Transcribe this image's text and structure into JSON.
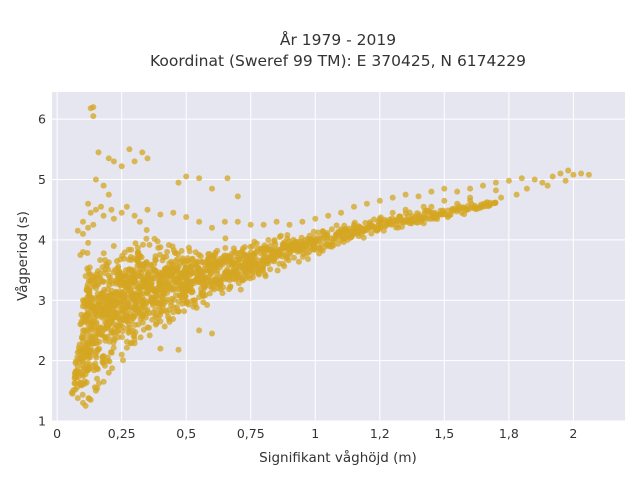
{
  "colors": {
    "plot_background": "#e6e6f0",
    "grid": "#ffffff",
    "marker": "#d4a521"
  },
  "chart_data": {
    "type": "scatter",
    "title": "År 1979 - 2019",
    "subtitle": "Koordinat (Sweref 99 TM): E 370425, N 6174229",
    "xlabel": "Signifikant våghöjd (m)",
    "ylabel": "Vågperiod (s)",
    "xlim": [
      -0.02,
      2.2
    ],
    "ylim": [
      1,
      6.45
    ],
    "x_ticks": [
      0,
      0.25,
      0.5,
      0.75,
      1,
      1.25,
      1.5,
      1.75,
      2
    ],
    "x_tick_labels": [
      "0",
      "0,25",
      "0,5",
      "0,75",
      "1",
      "1,2",
      "1,5",
      "1,8",
      "2"
    ],
    "y_ticks": [
      1,
      2,
      3,
      4,
      5,
      6
    ],
    "y_tick_labels": [
      "1",
      "2",
      "3",
      "4",
      "5",
      "6"
    ],
    "grid": true,
    "series": [
      {
        "marker_color": "#d4a521",
        "points": [
          [
            0.06,
            1.45
          ],
          [
            0.07,
            1.52
          ],
          [
            0.08,
            1.38
          ],
          [
            0.09,
            1.6
          ],
          [
            0.1,
            1.3
          ],
          [
            0.11,
            1.25
          ],
          [
            0.1,
            1.75
          ],
          [
            0.12,
            1.9
          ],
          [
            0.1,
            2.3
          ],
          [
            0.09,
            2.6
          ],
          [
            0.1,
            3.0
          ],
          [
            0.11,
            3.4
          ],
          [
            0.1,
            3.8
          ],
          [
            0.1,
            4.1
          ],
          [
            0.12,
            4.2
          ],
          [
            0.13,
            4.45
          ],
          [
            0.13,
            6.18
          ],
          [
            0.14,
            6.2
          ],
          [
            0.14,
            6.05
          ],
          [
            0.16,
            5.45
          ],
          [
            0.2,
            5.35
          ],
          [
            0.22,
            5.3
          ],
          [
            0.25,
            5.22
          ],
          [
            0.28,
            5.5
          ],
          [
            0.3,
            5.3
          ],
          [
            0.33,
            5.45
          ],
          [
            0.35,
            5.35
          ],
          [
            0.15,
            5.0
          ],
          [
            0.18,
            4.9
          ],
          [
            0.2,
            4.75
          ],
          [
            0.47,
            4.95
          ],
          [
            0.5,
            5.05
          ],
          [
            0.55,
            5.02
          ],
          [
            0.6,
            4.85
          ],
          [
            0.66,
            5.02
          ],
          [
            0.7,
            4.72
          ],
          [
            0.47,
            2.18
          ],
          [
            0.55,
            2.5
          ],
          [
            0.6,
            2.45
          ],
          [
            0.4,
            2.2
          ],
          [
            0.09,
            3.75
          ],
          [
            0.12,
            3.95
          ],
          [
            0.15,
            4.5
          ],
          [
            0.18,
            4.4
          ],
          [
            0.22,
            4.35
          ],
          [
            0.25,
            4.45
          ],
          [
            0.3,
            4.4
          ],
          [
            0.35,
            4.5
          ],
          [
            0.4,
            4.42
          ],
          [
            0.45,
            4.45
          ],
          [
            0.5,
            4.38
          ],
          [
            0.55,
            4.3
          ],
          [
            0.6,
            4.2
          ],
          [
            0.65,
            4.3
          ],
          [
            0.7,
            4.3
          ],
          [
            0.75,
            4.25
          ],
          [
            0.8,
            4.25
          ],
          [
            0.85,
            4.3
          ],
          [
            0.9,
            4.25
          ],
          [
            0.95,
            4.3
          ],
          [
            1.0,
            4.35
          ],
          [
            1.05,
            4.4
          ],
          [
            1.1,
            4.45
          ],
          [
            1.15,
            4.55
          ],
          [
            1.2,
            4.6
          ],
          [
            1.25,
            4.65
          ],
          [
            1.3,
            4.7
          ],
          [
            1.35,
            4.75
          ],
          [
            1.4,
            4.72
          ],
          [
            1.45,
            4.8
          ],
          [
            1.5,
            4.85
          ],
          [
            1.55,
            4.8
          ],
          [
            1.6,
            4.85
          ],
          [
            1.65,
            4.9
          ],
          [
            1.7,
            4.95
          ],
          [
            1.75,
            4.98
          ],
          [
            1.8,
            5.02
          ],
          [
            1.85,
            5.0
          ],
          [
            1.88,
            4.95
          ],
          [
            1.92,
            5.05
          ],
          [
            1.95,
            5.1
          ],
          [
            1.98,
            5.15
          ],
          [
            2.0,
            5.08
          ],
          [
            2.03,
            5.1
          ],
          [
            2.06,
            5.08
          ],
          [
            1.97,
            4.98
          ],
          [
            1.82,
            4.85
          ],
          [
            1.7,
            4.82
          ],
          [
            1.6,
            4.65
          ],
          [
            1.55,
            4.6
          ],
          [
            1.45,
            4.55
          ],
          [
            1.35,
            4.5
          ],
          [
            1.25,
            4.35
          ],
          [
            1.15,
            4.25
          ],
          [
            1.1,
            4.15
          ],
          [
            1.0,
            4.0
          ],
          [
            0.9,
            3.85
          ],
          [
            0.8,
            3.7
          ],
          [
            0.75,
            3.55
          ],
          [
            0.7,
            3.45
          ],
          [
            0.65,
            3.35
          ],
          [
            0.6,
            3.2
          ],
          [
            0.55,
            3.05
          ],
          [
            0.5,
            2.95
          ],
          [
            0.45,
            2.8
          ],
          [
            0.4,
            2.65
          ],
          [
            0.35,
            2.55
          ],
          [
            0.3,
            2.35
          ],
          [
            0.25,
            2.1
          ],
          [
            0.2,
            1.8
          ],
          [
            0.18,
            1.65
          ],
          [
            0.15,
            1.5
          ],
          [
            0.13,
            1.35
          ],
          [
            1.72,
            4.7
          ],
          [
            1.78,
            4.75
          ],
          [
            1.9,
            4.9
          ],
          [
            1.6,
            4.7
          ],
          [
            1.5,
            4.65
          ],
          [
            1.42,
            4.55
          ],
          [
            1.3,
            4.45
          ],
          [
            0.08,
            4.15
          ],
          [
            0.1,
            4.3
          ],
          [
            0.12,
            4.6
          ],
          [
            0.14,
            4.25
          ],
          [
            0.17,
            4.55
          ],
          [
            0.21,
            4.5
          ],
          [
            0.27,
            4.55
          ],
          [
            0.32,
            4.3
          ]
        ],
        "dense_bands": [
          {
            "x_from": 0.06,
            "x_to": 0.12,
            "y_center_from": 1.5,
            "y_center_to": 2.6,
            "half_spread_from": 0.15,
            "half_spread_to": 1.4
          },
          {
            "x_from": 0.12,
            "x_to": 0.3,
            "y_center_from": 2.6,
            "y_center_to": 3.15,
            "half_spread_from": 1.4,
            "half_spread_to": 1.15
          },
          {
            "x_from": 0.3,
            "x_to": 0.5,
            "y_center_from": 3.15,
            "y_center_to": 3.35,
            "half_spread_from": 1.15,
            "half_spread_to": 0.75
          },
          {
            "x_from": 0.5,
            "x_to": 0.75,
            "y_center_from": 3.35,
            "y_center_to": 3.62,
            "half_spread_from": 0.75,
            "half_spread_to": 0.45
          },
          {
            "x_from": 0.75,
            "x_to": 1.0,
            "y_center_from": 3.62,
            "y_center_to": 3.95,
            "half_spread_from": 0.45,
            "half_spread_to": 0.28
          },
          {
            "x_from": 1.0,
            "x_to": 1.25,
            "y_center_from": 3.95,
            "y_center_to": 4.25,
            "half_spread_from": 0.28,
            "half_spread_to": 0.2
          },
          {
            "x_from": 1.25,
            "x_to": 1.5,
            "y_center_from": 4.25,
            "y_center_to": 4.45,
            "half_spread_from": 0.2,
            "half_spread_to": 0.15
          },
          {
            "x_from": 1.5,
            "x_to": 1.7,
            "y_center_from": 4.45,
            "y_center_to": 4.6,
            "half_spread_from": 0.12,
            "half_spread_to": 0.1
          }
        ]
      }
    ]
  }
}
